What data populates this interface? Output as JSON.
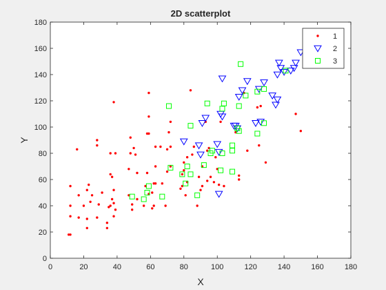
{
  "chart_data": {
    "type": "scatter",
    "title": "2D scatterplot",
    "xlabel": "X",
    "ylabel": "Y",
    "xlim": [
      0,
      180
    ],
    "ylim": [
      0,
      180
    ],
    "xticks": [
      0,
      20,
      40,
      60,
      80,
      100,
      120,
      140,
      160,
      180
    ],
    "yticks": [
      0,
      20,
      40,
      60,
      80,
      100,
      120,
      140,
      160,
      180
    ],
    "grid": false,
    "legend_position": "top-right",
    "series": [
      {
        "name": "1",
        "marker": "point",
        "color": "#ff0000",
        "points": [
          [
            11,
            18
          ],
          [
            12,
            18
          ],
          [
            12,
            40
          ],
          [
            12,
            55
          ],
          [
            12,
            32
          ],
          [
            16,
            83
          ],
          [
            17,
            48
          ],
          [
            17,
            31
          ],
          [
            20,
            40
          ],
          [
            22,
            52
          ],
          [
            22,
            23
          ],
          [
            22,
            30
          ],
          [
            23,
            56
          ],
          [
            24,
            43
          ],
          [
            25,
            48
          ],
          [
            28,
            31
          ],
          [
            28,
            90
          ],
          [
            28,
            86
          ],
          [
            29,
            41
          ],
          [
            31,
            50
          ],
          [
            34,
            23
          ],
          [
            34,
            27
          ],
          [
            35,
            39
          ],
          [
            36,
            40
          ],
          [
            36,
            64
          ],
          [
            36,
            80
          ],
          [
            37,
            62
          ],
          [
            37,
            45
          ],
          [
            38,
            42
          ],
          [
            38,
            32
          ],
          [
            38,
            52
          ],
          [
            38,
            119
          ],
          [
            39,
            80
          ],
          [
            39,
            37
          ],
          [
            47,
            48
          ],
          [
            47,
            68
          ],
          [
            48,
            92
          ],
          [
            48,
            80
          ],
          [
            49,
            41
          ],
          [
            49,
            37
          ],
          [
            50,
            84
          ],
          [
            51,
            79
          ],
          [
            52,
            45
          ],
          [
            52,
            65
          ],
          [
            56,
            40
          ],
          [
            57,
            55
          ],
          [
            58,
            65
          ],
          [
            58,
            95
          ],
          [
            59,
            95
          ],
          [
            59,
            49
          ],
          [
            59,
            126
          ],
          [
            59,
            108
          ],
          [
            61,
            38
          ],
          [
            61,
            50
          ],
          [
            62,
            40
          ],
          [
            62,
            57
          ],
          [
            63,
            57
          ],
          [
            63,
            70
          ],
          [
            63,
            85
          ],
          [
            66,
            85
          ],
          [
            67,
            57
          ],
          [
            69,
            40
          ],
          [
            70,
            66
          ],
          [
            70,
            83
          ],
          [
            71,
            96
          ],
          [
            72,
            85
          ],
          [
            72,
            104
          ],
          [
            72,
            70
          ],
          [
            78,
            53
          ],
          [
            79,
            55
          ],
          [
            79,
            64
          ],
          [
            80,
            67
          ],
          [
            80,
            73
          ],
          [
            81,
            48
          ],
          [
            82,
            77
          ],
          [
            82,
            58
          ],
          [
            84,
            128
          ],
          [
            85,
            79
          ],
          [
            86,
            85
          ],
          [
            88,
            40
          ],
          [
            89,
            62
          ],
          [
            90,
            52
          ],
          [
            91,
            70
          ],
          [
            91,
            55
          ],
          [
            93,
            104
          ],
          [
            94,
            59
          ],
          [
            94,
            82
          ],
          [
            95,
            84
          ],
          [
            96,
            62
          ],
          [
            98,
            58
          ],
          [
            99,
            77
          ],
          [
            100,
            68
          ],
          [
            101,
            56
          ],
          [
            102,
            104
          ],
          [
            104,
            55
          ],
          [
            111,
            96
          ],
          [
            113,
            63
          ],
          [
            113,
            60
          ],
          [
            116,
            126
          ],
          [
            118,
            82
          ],
          [
            124,
            115
          ],
          [
            125,
            86
          ],
          [
            126,
            116
          ],
          [
            129,
            73
          ],
          [
            147,
            110
          ],
          [
            150,
            97
          ]
        ]
      },
      {
        "name": "2",
        "marker": "triangle-down",
        "color": "#0000ff",
        "points": [
          [
            80,
            89
          ],
          [
            89,
            86
          ],
          [
            90,
            79
          ],
          [
            91,
            103
          ],
          [
            93,
            107
          ],
          [
            100,
            87
          ],
          [
            101,
            49
          ],
          [
            101,
            81
          ],
          [
            102,
            110
          ],
          [
            103,
            108
          ],
          [
            103,
            137
          ],
          [
            110,
            101
          ],
          [
            111,
            101
          ],
          [
            112,
            99
          ],
          [
            113,
            123
          ],
          [
            115,
            128
          ],
          [
            118,
            135
          ],
          [
            123,
            103
          ],
          [
            125,
            129
          ],
          [
            126,
            104
          ],
          [
            128,
            134
          ],
          [
            133,
            124
          ],
          [
            135,
            117
          ],
          [
            136,
            121
          ],
          [
            136,
            140
          ],
          [
            137,
            149
          ],
          [
            138,
            145
          ],
          [
            140,
            142
          ],
          [
            144,
            143
          ],
          [
            146,
            145
          ],
          [
            147,
            149
          ],
          [
            150,
            157
          ]
        ]
      },
      {
        "name": "3",
        "marker": "square",
        "color": "#00ff00",
        "points": [
          [
            49,
            47
          ],
          [
            56,
            45
          ],
          [
            58,
            50
          ],
          [
            59,
            55
          ],
          [
            67,
            47
          ],
          [
            71,
            116
          ],
          [
            72,
            69
          ],
          [
            79,
            64
          ],
          [
            81,
            57
          ],
          [
            82,
            70
          ],
          [
            84,
            64
          ],
          [
            84,
            101
          ],
          [
            88,
            48
          ],
          [
            92,
            71
          ],
          [
            94,
            118
          ],
          [
            96,
            80
          ],
          [
            97,
            82
          ],
          [
            102,
            67
          ],
          [
            103,
            80
          ],
          [
            103,
            114
          ],
          [
            104,
            118
          ],
          [
            109,
            82
          ],
          [
            109,
            66
          ],
          [
            109,
            86
          ],
          [
            112,
            99
          ],
          [
            113,
            97
          ],
          [
            113,
            116
          ],
          [
            114,
            148
          ],
          [
            117,
            124
          ],
          [
            124,
            127
          ],
          [
            124,
            95
          ],
          [
            128,
            103
          ],
          [
            128,
            129
          ],
          [
            141,
            143
          ]
        ]
      }
    ]
  }
}
